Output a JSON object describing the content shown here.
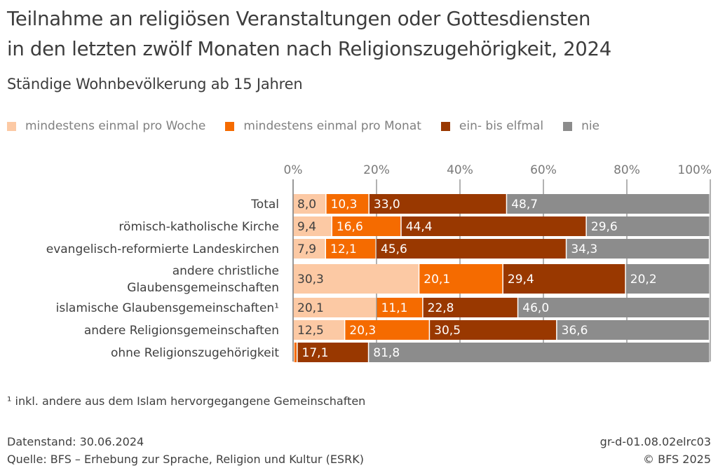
{
  "header": {
    "title_line1": "Teilnahme an religiösen Veranstaltungen oder Gottesdiensten",
    "title_line2": "in den letzten zwölf Monaten nach Religionszugehörigkeit, 2024",
    "subtitle": "Ständige Wohnbevölkerung ab 15 Jahren"
  },
  "legend": [
    {
      "label": "mindestens einmal pro Woche",
      "color": "#fcc9a4"
    },
    {
      "label": "mindestens einmal pro Monat",
      "color": "#f56b00"
    },
    {
      "label": "ein- bis elfmal",
      "color": "#993800"
    },
    {
      "label": "nie",
      "color": "#8c8c8c"
    }
  ],
  "chart_data": {
    "type": "bar",
    "orientation": "horizontal",
    "stacked": true,
    "title": "Teilnahme an religiösen Veranstaltungen oder Gottesdiensten in den letzten zwölf Monaten nach Religionszugehörigkeit, 2024",
    "subtitle": "Ständige Wohnbevölkerung ab 15 Jahren",
    "xlabel": "",
    "ylabel": "",
    "xlim": [
      0,
      100
    ],
    "x_ticks": [
      "0%",
      "20%",
      "40%",
      "60%",
      "80%",
      "100%"
    ],
    "x_tick_values": [
      0,
      20,
      40,
      60,
      80,
      100
    ],
    "grid": true,
    "legend_position": "top",
    "categories": [
      [
        "Total"
      ],
      [
        "römisch-katholische Kirche"
      ],
      [
        "evangelisch-reformierte Landeskirchen"
      ],
      [
        "andere christliche",
        "Glaubensgemeinschaften"
      ],
      [
        "islamische Glaubensgemeinschaften¹"
      ],
      [
        "andere Religionsgemeinschaften"
      ],
      [
        "ohne Religionszugehörigkeit"
      ]
    ],
    "series": [
      {
        "name": "mindestens einmal pro Woche",
        "color": "#fcc9a4",
        "text_color": "#404040",
        "values": [
          8.0,
          9.4,
          7.9,
          30.3,
          20.1,
          12.5,
          0.3
        ],
        "labels": [
          "8,0",
          "9,4",
          "7,9",
          "30,3",
          "20,1",
          "12,5",
          ""
        ]
      },
      {
        "name": "mindestens einmal pro Monat",
        "color": "#f56b00",
        "text_color": "#ffffff",
        "values": [
          10.3,
          16.6,
          12.1,
          20.1,
          11.1,
          20.3,
          0.8
        ],
        "labels": [
          "10,3",
          "16,6",
          "12,1",
          "20,1",
          "11,1",
          "20,3",
          ""
        ]
      },
      {
        "name": "ein- bis elfmal",
        "color": "#993800",
        "text_color": "#ffffff",
        "values": [
          33.0,
          44.4,
          45.6,
          29.4,
          22.8,
          30.5,
          17.1
        ],
        "labels": [
          "33,0",
          "44,4",
          "45,6",
          "29,4",
          "22,8",
          "30,5",
          "17,1"
        ]
      },
      {
        "name": "nie",
        "color": "#8c8c8c",
        "text_color": "#ffffff",
        "values": [
          48.7,
          29.6,
          34.3,
          20.2,
          46.0,
          36.6,
          81.8
        ],
        "labels": [
          "48,7",
          "29,6",
          "34,3",
          "20,2",
          "46,0",
          "36,6",
          "81,8"
        ]
      }
    ]
  },
  "footer": {
    "footnote": "¹ inkl. andere aus dem Islam hervorgegangene Gemeinschaften",
    "data_status": "Datenstand: 30.06.2024",
    "source": "Quelle: BFS – Erhebung zur Sprache, Religion und Kultur (ESRK)",
    "code": "gr-d-01.08.02elrc03",
    "copyright": "© BFS 2025"
  }
}
